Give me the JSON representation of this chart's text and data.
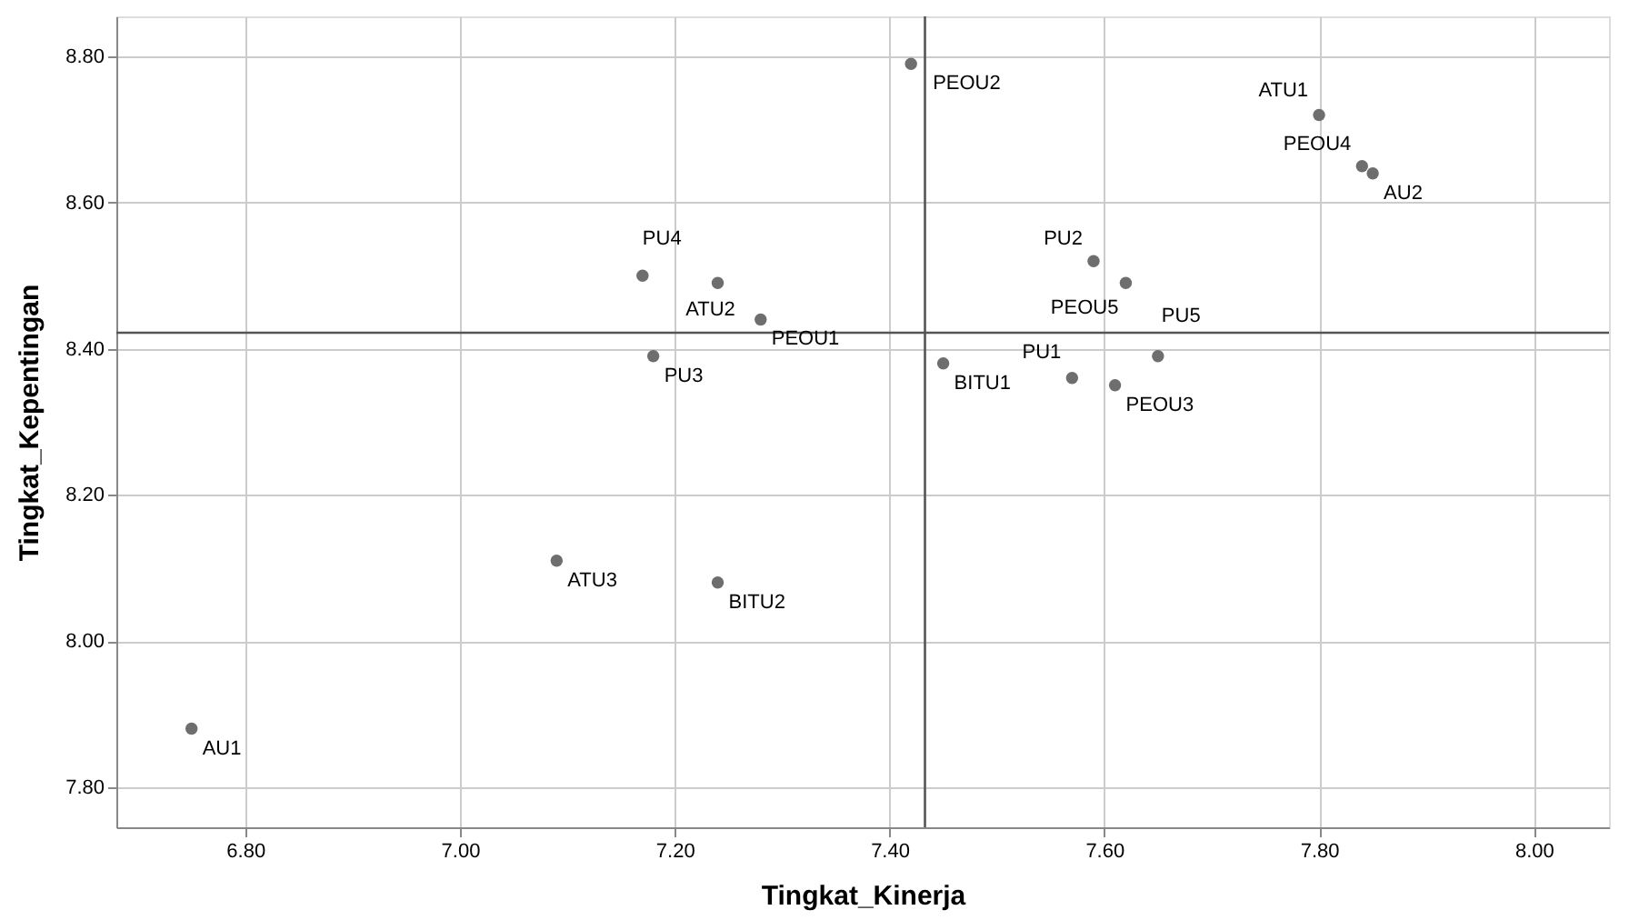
{
  "chart_data": {
    "type": "scatter",
    "xlabel": "Tingkat_Kinerja",
    "ylabel": "Tingkat_Kepentingan",
    "series": [
      {
        "color": "#6e6e6e",
        "x": [
          7.42,
          7.8,
          7.84,
          7.85,
          7.59,
          7.62,
          7.65,
          7.45,
          7.57,
          7.61,
          7.17,
          7.24,
          7.28,
          7.18,
          7.09,
          7.24,
          6.75
        ],
        "values": [
          8.79,
          8.72,
          8.65,
          8.64,
          8.52,
          8.49,
          8.39,
          8.38,
          8.36,
          8.35,
          8.5,
          8.49,
          8.44,
          8.39,
          8.11,
          8.08,
          7.88
        ]
      }
    ],
    "annotations": [
      {
        "text": "PEOU2",
        "x": 7.42,
        "y": 8.79
      },
      {
        "text": "ATU1",
        "x": 7.8,
        "y": 8.72
      },
      {
        "text": "PEOU4",
        "x": 7.84,
        "y": 8.65
      },
      {
        "text": "AU2",
        "x": 7.85,
        "y": 8.64
      },
      {
        "text": "PU2",
        "x": 7.59,
        "y": 8.52
      },
      {
        "text": "PEOU5",
        "x": 7.62,
        "y": 8.49
      },
      {
        "text": "PU5",
        "x": 7.65,
        "y": 8.39
      },
      {
        "text": "BITU1",
        "x": 7.45,
        "y": 8.38
      },
      {
        "text": "PU1",
        "x": 7.57,
        "y": 8.36
      },
      {
        "text": "PEOU3",
        "x": 7.61,
        "y": 8.35
      },
      {
        "text": "PU4",
        "x": 7.17,
        "y": 8.5
      },
      {
        "text": "ATU2",
        "x": 7.24,
        "y": 8.49
      },
      {
        "text": "PEOU1",
        "x": 7.28,
        "y": 8.44
      },
      {
        "text": "PU3",
        "x": 7.18,
        "y": 8.39
      },
      {
        "text": "ATU3",
        "x": 7.09,
        "y": 8.11
      },
      {
        "text": "BITU2",
        "x": 7.24,
        "y": 8.08
      },
      {
        "text": "AU1",
        "x": 6.75,
        "y": 7.88
      }
    ],
    "ref_lines": [
      {
        "axis": "x",
        "value": 7.433,
        "color": "#555555"
      },
      {
        "axis": "y",
        "value": 8.422,
        "color": "#555555"
      }
    ],
    "xlim": [
      6.68,
      8.07
    ],
    "xticks": [
      {
        "value": 6.8,
        "label": "6.80"
      },
      {
        "value": 7.0,
        "label": "7.00"
      },
      {
        "value": 7.2,
        "label": "7.20"
      },
      {
        "value": 7.4,
        "label": "7.40"
      },
      {
        "value": 7.6,
        "label": "7.60"
      },
      {
        "value": 7.8,
        "label": "7.80"
      },
      {
        "value": 8.0,
        "label": "8.00"
      }
    ],
    "ylim": [
      7.745,
      8.855
    ],
    "yticks": [
      {
        "value": 7.8,
        "label": "7.80"
      },
      {
        "value": 8.0,
        "label": "8.00"
      },
      {
        "value": 8.2,
        "label": "8.20"
      },
      {
        "value": 8.4,
        "label": "8.40"
      },
      {
        "value": 8.6,
        "label": "8.60"
      },
      {
        "value": 8.8,
        "label": "8.80"
      }
    ],
    "grid": true,
    "marker": "circle"
  }
}
